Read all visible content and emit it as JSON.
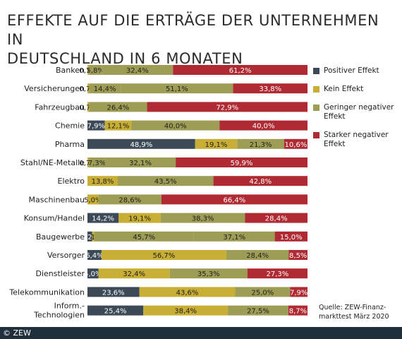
{
  "title": {
    "line1": "EFFEKTE AUF DIE ERTRÄGE DER UNTERNEHMEN IN",
    "line2": "DEUTSCHLAND IN 6 MONATEN"
  },
  "legend": [
    {
      "name": "Positiver Effekt",
      "color": "#3b4a56"
    },
    {
      "name": "Kein Effekt",
      "color": "#c8ae35"
    },
    {
      "name": "Geringer negativer Effekt",
      "color": "#9e9d56"
    },
    {
      "name": "Starker negativer Effekt",
      "color": "#b02a34"
    }
  ],
  "source": "Quelle: ZEW-Finanz-markttest März 2020",
  "footer": "© ZEW",
  "chart_data": {
    "type": "bar",
    "orientation": "horizontal",
    "stacked": true,
    "percent_scale": true,
    "legend_position": "right",
    "categories": [
      "Banken",
      "Versicherungen",
      "Fahrzeugbau",
      "Chemie",
      "Pharma",
      "Stahl/NE-Metalle",
      "Elektro",
      "Maschinenbau",
      "Konsum/Handel",
      "Baugewerbe",
      "Versorger",
      "Dienstleister",
      "Telekommunikation",
      "Inform.-\nTechnologien"
    ],
    "series": [
      {
        "name": "Positiver Effekt",
        "color": "#3b4a56",
        "values": [
          0.0,
          0.0,
          0.0,
          7.9,
          48.9,
          0.0,
          0.0,
          0.0,
          14.2,
          2.1,
          6.4,
          5.0,
          23.6,
          25.4
        ],
        "labels": [
          "",
          "",
          "",
          "7,9",
          "48,9",
          "",
          "",
          "",
          "14,2",
          "2",
          "6,4",
          "5,0",
          "23,6",
          "25,4"
        ]
      },
      {
        "name": "Kein Effekt",
        "color": "#c8ae35",
        "values": [
          0.7,
          0.7,
          0.7,
          12.1,
          19.1,
          0.7,
          13.8,
          5.0,
          19.1,
          1.0,
          56.7,
          32.4,
          43.6,
          38.4
        ],
        "labels": [
          "0,7",
          "0,7",
          "0,7",
          "12,1",
          "19,1",
          "0,7",
          "13,8",
          "5,0",
          "19,1",
          "1",
          "56,7",
          "32,4",
          "43,6",
          "38,4"
        ]
      },
      {
        "name": "Geringer negativer Effekt",
        "color": "#9e9d56",
        "values": [
          5.8,
          14.4,
          26.4,
          40.0,
          21.3,
          7.3,
          43.5,
          28.6,
          38.3,
          45.7,
          28.4,
          35.3,
          25.0,
          27.5
        ],
        "labels": [
          "5,8",
          "14,4",
          "26,4",
          "40,0",
          "21,3",
          "7,3",
          "43,5",
          "28,6",
          "38,3",
          "45,7",
          "28,4",
          "35,3",
          "25,0",
          "27,5"
        ]
      },
      {
        "name": "Geringer negativer Effekt (2)",
        "color": "#9e9d56",
        "values": [
          32.4,
          51.1,
          0,
          0,
          0,
          32.1,
          0,
          0,
          0,
          37.1,
          0,
          0,
          0,
          0
        ],
        "labels": [
          "32,4",
          "51,1",
          "",
          "",
          "",
          "32,1",
          "",
          "",
          "",
          "37,1",
          "",
          "",
          "",
          ""
        ]
      },
      {
        "name": "Starker negativer Effekt",
        "color": "#b02a34",
        "values": [
          61.2,
          33.8,
          72.9,
          40.0,
          10.6,
          59.9,
          42.8,
          66.4,
          28.4,
          15.0,
          8.5,
          27.3,
          7.9,
          8.7
        ],
        "labels": [
          "61,2",
          "33,8",
          "72,9",
          "40,0",
          "10,6",
          "59,9",
          "42,8",
          "66,4",
          "28,4",
          "15,0",
          "8,5",
          "27,3",
          "7,9",
          "8,7"
        ]
      }
    ]
  }
}
